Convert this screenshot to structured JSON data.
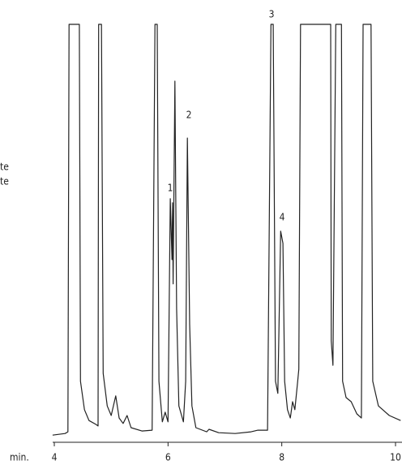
{
  "chart_data": {
    "type": "line",
    "x_label": "min.",
    "side_labels": [
      "te",
      "te"
    ],
    "annotations": [
      "1",
      "2",
      "3",
      "4"
    ],
    "color": "#222222",
    "x": [
      3.97,
      4.19,
      4.24,
      4.26,
      4.44,
      4.46,
      4.53,
      4.61,
      4.73,
      4.77,
      4.78,
      4.83,
      4.86,
      4.93,
      5.0,
      5.08,
      5.14,
      5.21,
      5.28,
      5.35,
      5.54,
      5.72,
      5.77,
      5.81,
      5.84,
      5.9,
      5.95,
      6.0,
      6.04,
      6.07,
      6.08,
      6.09,
      6.12,
      6.15,
      6.19,
      6.27,
      6.31,
      6.34,
      6.38,
      6.42,
      6.49,
      6.68,
      6.72,
      6.89,
      7.18,
      7.46,
      7.58,
      7.75,
      7.81,
      7.85,
      7.89,
      7.93,
      7.98,
      8.02,
      8.05,
      8.1,
      8.15,
      8.19,
      8.23,
      8.28,
      8.3,
      8.33,
      8.86,
      8.87,
      8.9,
      8.95,
      9.05,
      9.07,
      9.13,
      9.22,
      9.32,
      9.4,
      9.43,
      9.57,
      9.6,
      9.7,
      9.89,
      10.09
    ],
    "y": [
      1.7,
      2.1,
      2.5,
      100,
      100,
      14.6,
      7.8,
      5.2,
      4.3,
      3.9,
      100,
      100,
      16.5,
      8.7,
      6.4,
      11.1,
      5.8,
      4.5,
      6.4,
      3.5,
      2.7,
      2.9,
      100,
      100,
      14.6,
      4.9,
      7.2,
      4.9,
      58.3,
      43.7,
      57.3,
      37.9,
      86.4,
      32.0,
      8.7,
      4.9,
      14.6,
      72.8,
      28.2,
      8.7,
      3.5,
      2.5,
      3.1,
      2.3,
      2.1,
      2.5,
      2.9,
      2.9,
      100,
      100,
      14.6,
      11.7,
      50.5,
      47.6,
      14.6,
      7.8,
      5.8,
      9.7,
      7.8,
      14.6,
      17.5,
      100,
      100,
      24.3,
      18.4,
      100,
      100,
      14.6,
      10.7,
      9.7,
      6.8,
      5.8,
      100,
      100,
      14.6,
      8.7,
      6.4,
      5.2
    ],
    "xlim": [
      4,
      10
    ],
    "ylim": [
      0,
      100
    ],
    "xticks": [
      4,
      6,
      8,
      10
    ]
  }
}
